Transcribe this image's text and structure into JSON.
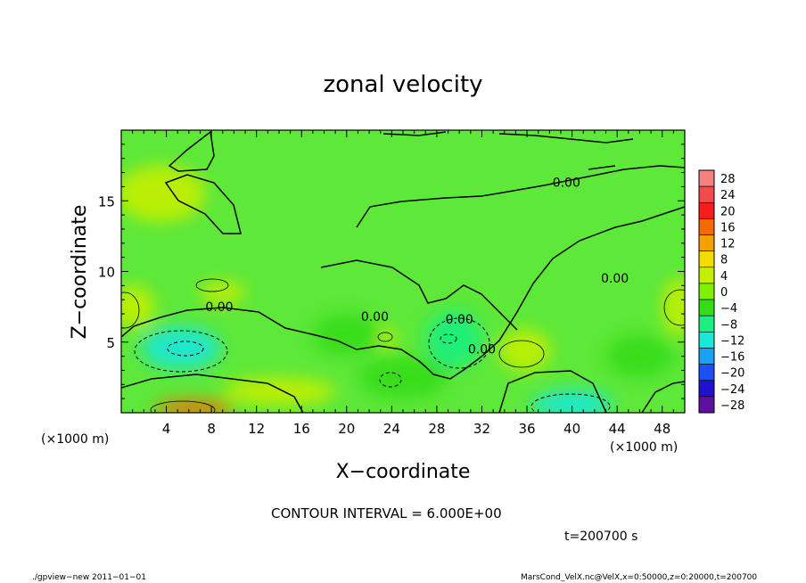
{
  "chart_data": {
    "type": "heatmap",
    "title": "zonal velocity",
    "xlabel": "X−coordinate",
    "ylabel": "Z−coordinate",
    "x_unit": "(×1000 m)",
    "y_unit": "(×1000 m)",
    "xlim": [
      0,
      50
    ],
    "ylim": [
      0,
      20
    ],
    "x_ticks": [
      4,
      8,
      12,
      16,
      20,
      24,
      28,
      32,
      36,
      40,
      44,
      48
    ],
    "y_ticks": [
      5,
      10,
      15
    ],
    "colorbar": {
      "levels": [
        28,
        24,
        20,
        16,
        12,
        8,
        4,
        0,
        -4,
        -8,
        -12,
        -16,
        -20,
        -24,
        -28
      ],
      "labels": [
        "28",
        "24",
        "20",
        "16",
        "12",
        "8",
        "4",
        "0",
        "−4",
        "−8",
        "−12",
        "−16",
        "−20",
        "−24",
        "−28"
      ],
      "colors": [
        "#f48080",
        "#f44a4a",
        "#f41e1e",
        "#f46a00",
        "#f4a000",
        "#f4dc00",
        "#c4f000",
        "#7ff000",
        "#34dc18",
        "#1af080",
        "#1ae8d8",
        "#1aa0f4",
        "#1a50f4",
        "#2010d0",
        "#6010a0"
      ]
    },
    "contour_labels": [
      {
        "text": "0.00",
        "x": 8.7,
        "z": 7.2
      },
      {
        "text": "0.00",
        "x": 22.5,
        "z": 6.5
      },
      {
        "text": "0.00",
        "x": 30.0,
        "z": 6.3
      },
      {
        "text": "0.00",
        "x": 32.0,
        "z": 4.2
      },
      {
        "text": "0.00",
        "x": 39.5,
        "z": 16.0
      },
      {
        "text": "0.00",
        "x": 43.8,
        "z": 9.2
      }
    ],
    "blobs": [
      {
        "x": 5.3,
        "z": 4.6,
        "value": -11,
        "rx": 3.5,
        "rz": 1.5
      },
      {
        "x": 29.5,
        "z": 5.2,
        "value": -10,
        "rx": 2.5,
        "rz": 2.0
      },
      {
        "x": 40.0,
        "z": 0.6,
        "value": -11,
        "rx": 3.5,
        "rz": 1.0
      },
      {
        "x": 6.5,
        "z": 0.3,
        "value": 16,
        "rx": 3.5,
        "rz": 0.6
      },
      {
        "x": 1.0,
        "z": 7.5,
        "value": 5,
        "rx": 2.0,
        "rz": 1.5
      },
      {
        "x": 49.5,
        "z": 7.5,
        "value": 5,
        "rx": 1.5,
        "rz": 2.0
      },
      {
        "x": 35.8,
        "z": 4.4,
        "value": 5,
        "rx": 2.3,
        "rz": 1.5
      },
      {
        "x": 9.0,
        "z": 8.5,
        "value": 5,
        "rx": 2.0,
        "rz": 0.8
      },
      {
        "x": 23.5,
        "z": 5.3,
        "value": 5,
        "rx": 1.0,
        "rz": 0.6
      },
      {
        "x": 14.0,
        "z": 1.5,
        "value": 4,
        "rx": 5.0,
        "rz": 1.0
      },
      {
        "x": 20.0,
        "z": 5.5,
        "value": -4,
        "rx": 3.0,
        "rz": 1.5
      },
      {
        "x": 25.0,
        "z": 2.5,
        "value": -5,
        "rx": 4.0,
        "rz": 1.5
      },
      {
        "x": 3.5,
        "z": 15.5,
        "value": 3,
        "rx": 4.0,
        "rz": 2.0
      },
      {
        "x": 46.0,
        "z": 4.0,
        "value": -3,
        "rx": 3.0,
        "rz": 1.5
      }
    ]
  },
  "footer": {
    "interval_text": "CONTOUR INTERVAL = 6.000E+00",
    "time_text": "t=200700 s",
    "program_text": "./gpview−new   2011−01−01",
    "file_text": "MarsCond_VelX.nc@VelX,x=0:50000,z=0:20000,t=200700"
  }
}
